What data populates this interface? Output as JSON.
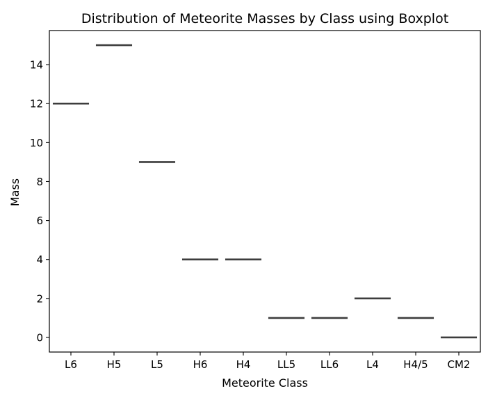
{
  "chart_data": {
    "type": "box",
    "title": "Distribution of Meteorite Masses by Class using Boxplot",
    "xlabel": "Meteorite Class",
    "ylabel": "Mass",
    "categories": [
      "L6",
      "H5",
      "L5",
      "H6",
      "H4",
      "LL5",
      "LL6",
      "L4",
      "H4/5",
      "CM2"
    ],
    "values": [
      12,
      15,
      9,
      4,
      4,
      1,
      1,
      2,
      1,
      0
    ],
    "yticks": [
      0,
      2,
      4,
      6,
      8,
      10,
      12,
      14
    ],
    "ylim": [
      -0.75,
      15.75
    ],
    "grid": false,
    "legend": "none",
    "colors": {
      "median_line": "#3d3d3d",
      "axes": "#000000",
      "background": "#ffffff"
    }
  }
}
